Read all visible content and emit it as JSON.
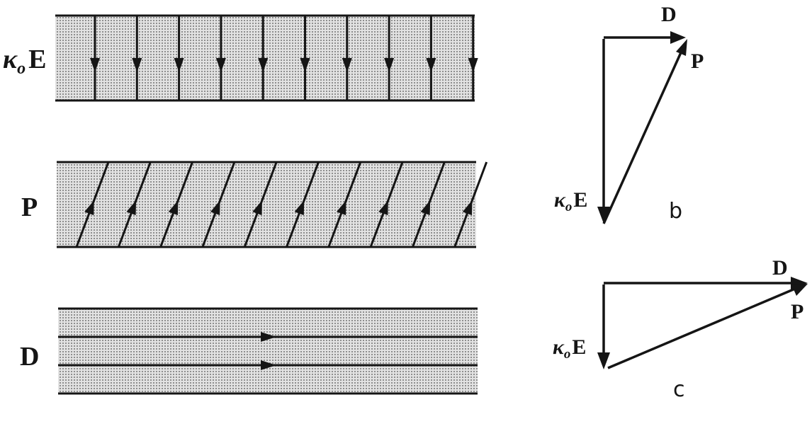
{
  "colors": {
    "ink": "#151515",
    "slab_fill": "#c9c9c9",
    "background": "#ffffff"
  },
  "slabs": {
    "e_field": {
      "label_symbol": "κ",
      "label_subscript": "o",
      "label_letter": "E",
      "line_count": 10,
      "line_direction": "down"
    },
    "polarization": {
      "label": "P",
      "line_count": 10,
      "line_direction": "up-right"
    },
    "displacement": {
      "label": "D",
      "line_count": 2,
      "line_direction": "right"
    }
  },
  "triangle_b": {
    "caption": "b",
    "d_label": "D",
    "p_label": "P",
    "e_label_symbol": "κ",
    "e_label_subscript": "o",
    "e_label_letter": "E"
  },
  "triangle_c": {
    "caption": "c",
    "d_label": "D",
    "p_label": "P",
    "e_label_symbol": "κ",
    "e_label_subscript": "o",
    "e_label_letter": "E"
  }
}
